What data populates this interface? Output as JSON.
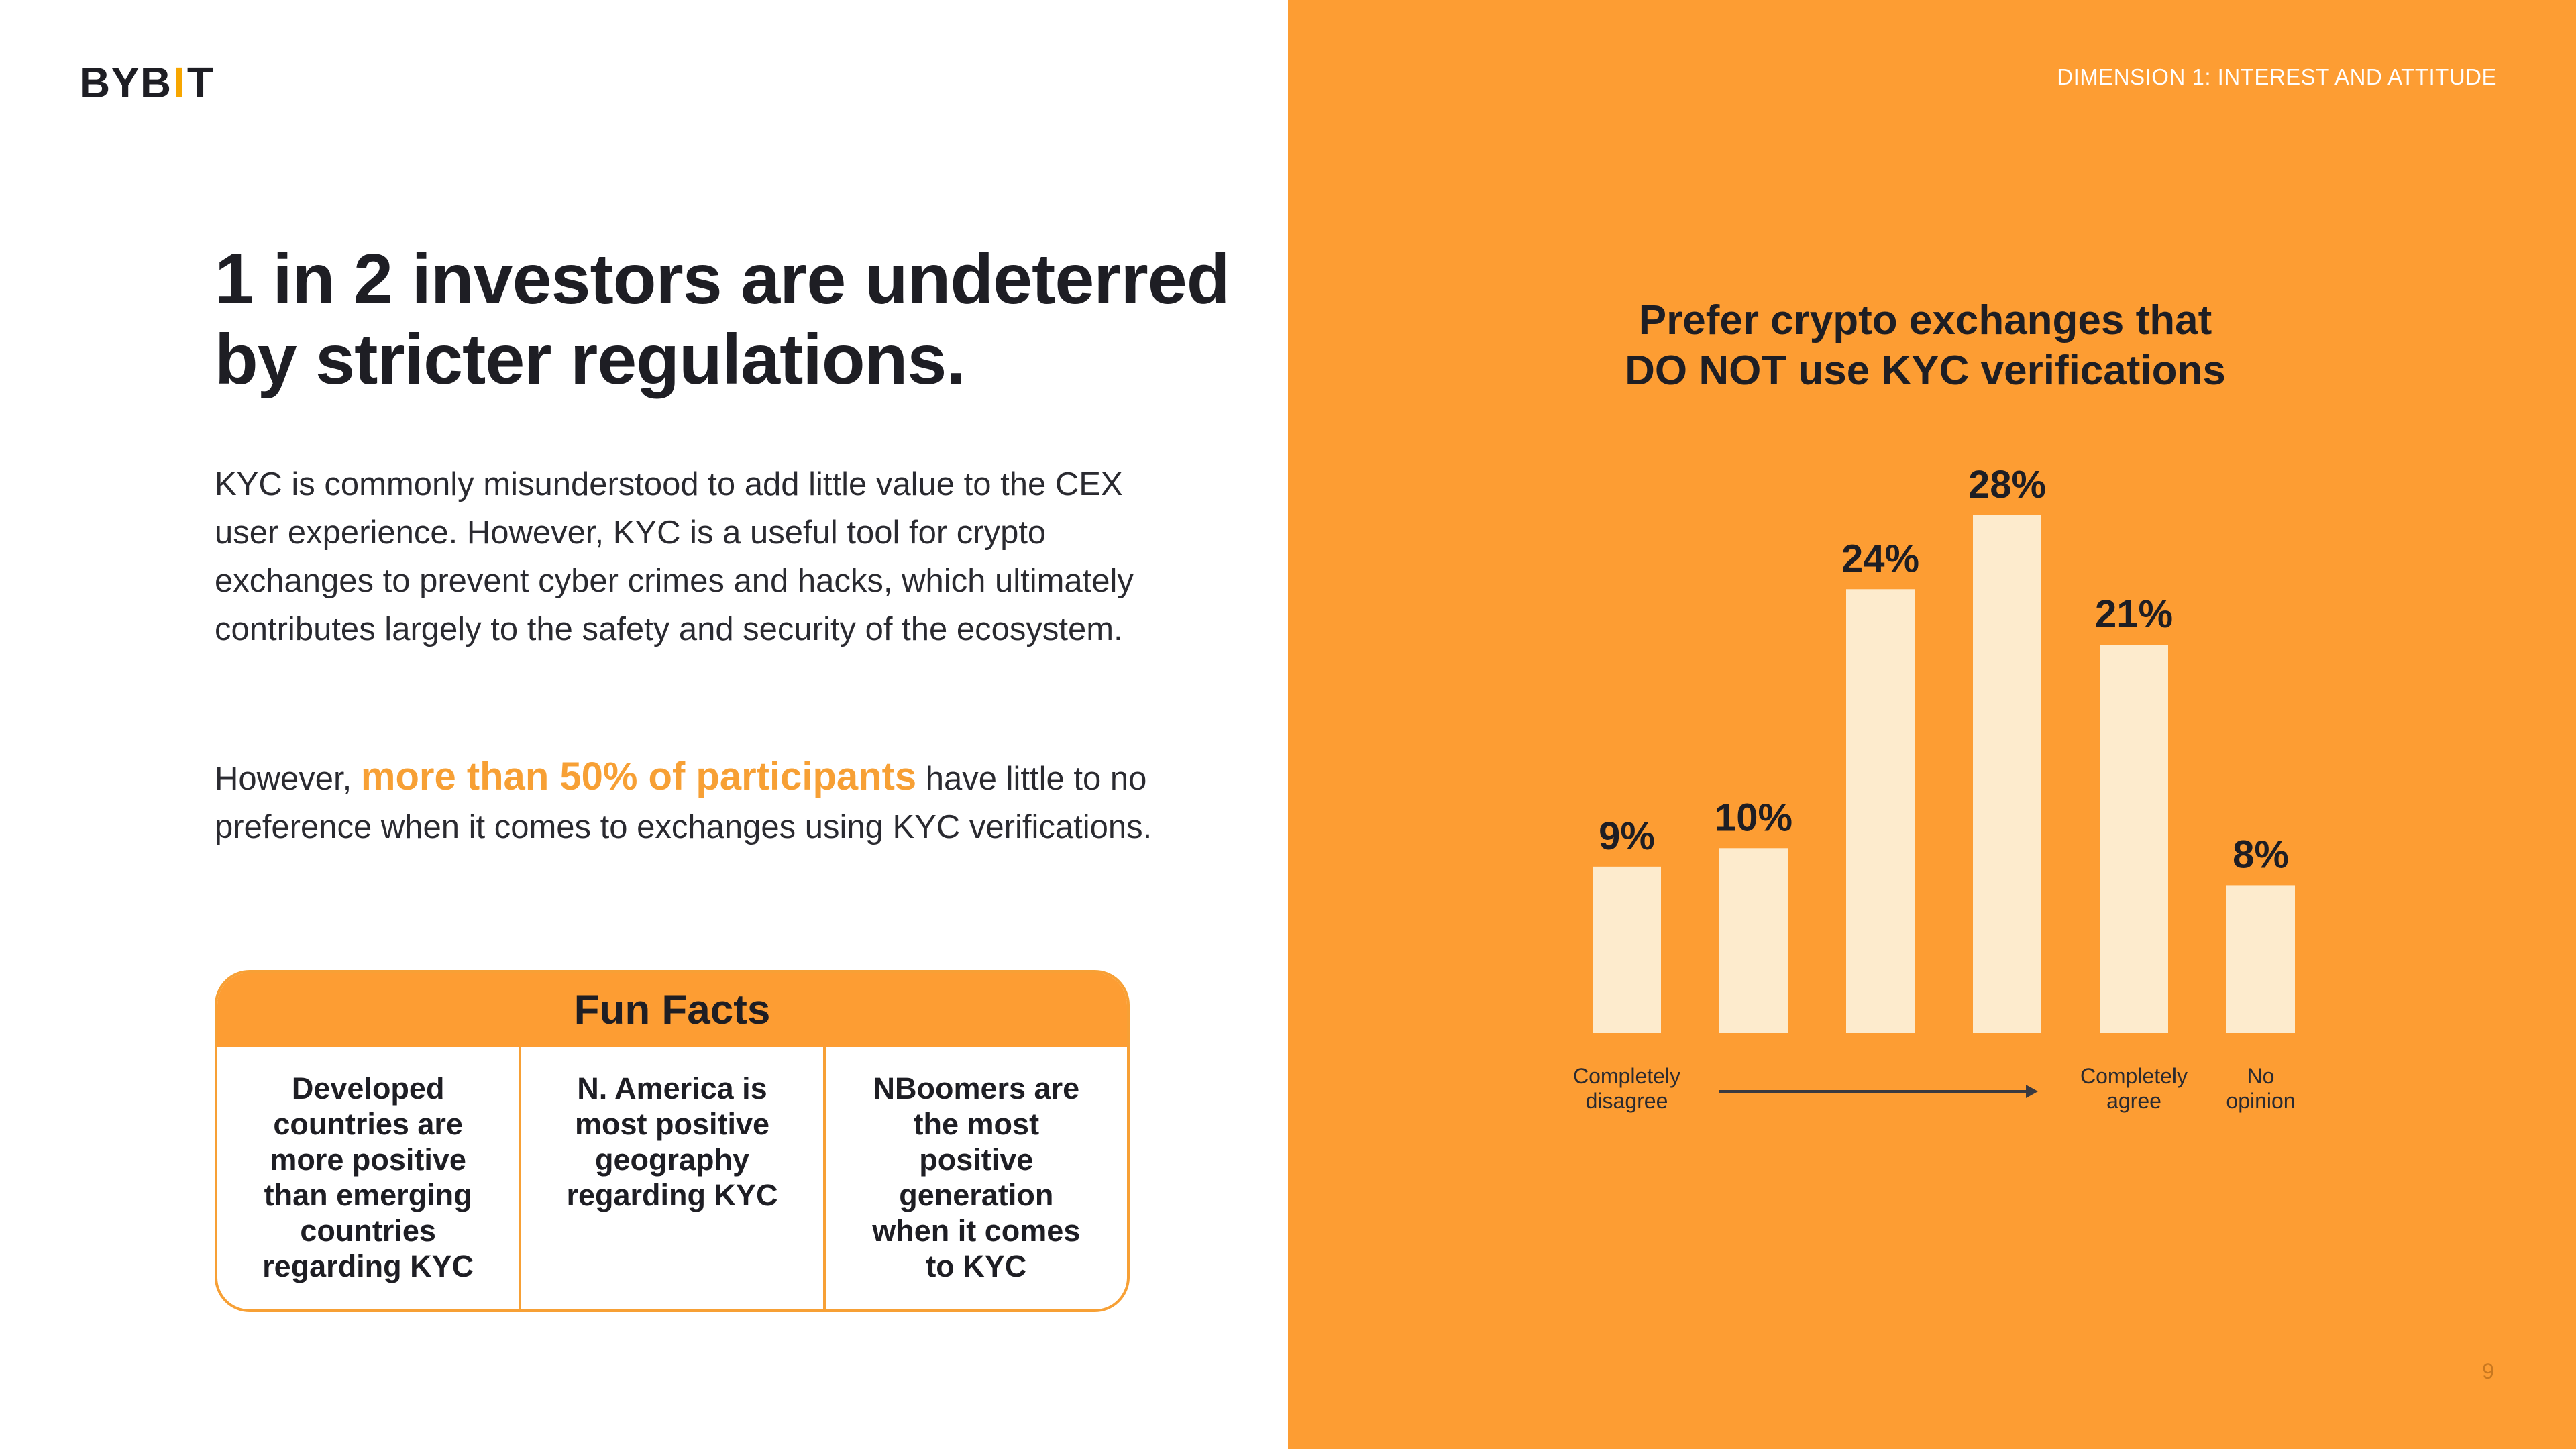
{
  "logo": {
    "text_left": "BYB",
    "text_bar": "I",
    "text_right": "T"
  },
  "header": {
    "dimension": "DIMENSION 1: INTEREST AND ATTITUDE"
  },
  "headline": {
    "line1": "1 in 2 investors are undeterred",
    "line2": "by stricter regulations."
  },
  "paragraph1": "KYC is commonly misunderstood to add little value to the CEX user experience. However, KYC is a useful tool for crypto exchanges to prevent cyber crimes and hacks, which ultimately contributes largely to the safety and security of the ecosystem.",
  "paragraph2": {
    "prefix": "However, ",
    "highlight": "more than 50% of participants",
    "suffix": " have little to no preference when it comes to exchanges using KYC verifications."
  },
  "fun_facts": {
    "title": "Fun Facts",
    "facts": [
      "Developed countries are more positive than emerging countries regarding KYC",
      "N. America is most positive geography regarding KYC",
      "NBoomers are the most positive generation when it comes to  KYC"
    ]
  },
  "chart_data": {
    "type": "bar",
    "title_line1": "Prefer crypto exchanges that",
    "title_line2": "DO NOT use KYC verifications",
    "values": [
      9,
      10,
      24,
      28,
      21,
      8
    ],
    "value_labels": [
      "9%",
      "10%",
      "24%",
      "28%",
      "21%",
      "8%"
    ],
    "category_labels": [
      [
        "Completely",
        "disagree"
      ],
      [
        "",
        ""
      ],
      [
        "",
        ""
      ],
      [
        "",
        ""
      ],
      [
        "Completely",
        "agree"
      ],
      [
        "No",
        "opinion"
      ]
    ],
    "ylim": [
      0,
      28
    ],
    "grid": false,
    "legend": "none",
    "bar_color": "#fdebcd",
    "arrow": "Completely disagree → Completely agree"
  },
  "colors": {
    "accent": "#fd9d33",
    "highlight": "#f7a035",
    "bar": "#fdebcd",
    "text": "#1e1e24"
  },
  "page": {
    "number": "9"
  }
}
